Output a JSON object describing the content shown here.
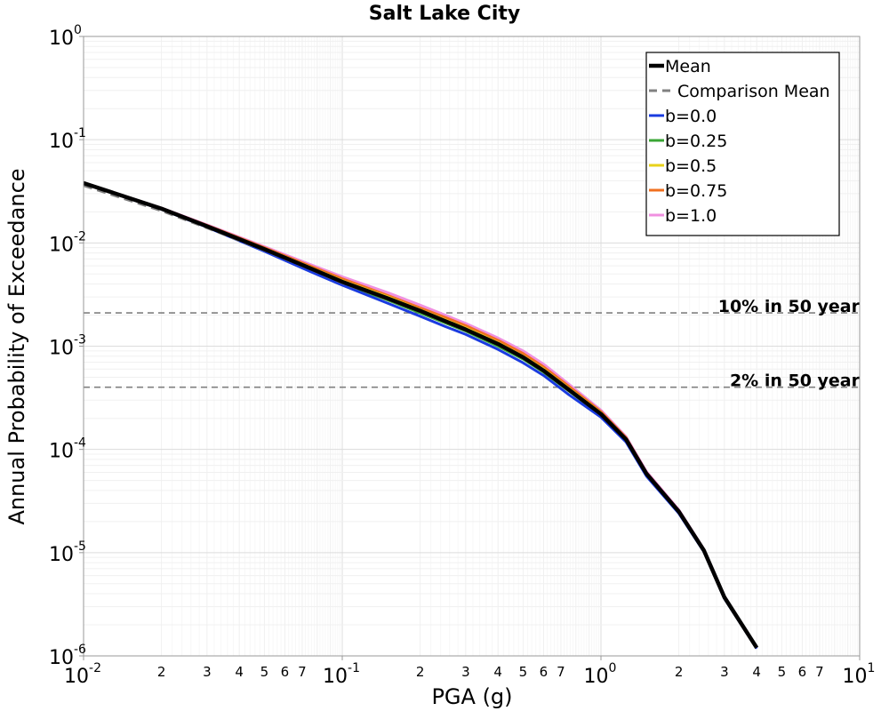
{
  "chart_data": {
    "type": "line",
    "title": "Salt Lake City",
    "xlabel": "PGA (g)",
    "ylabel": "Annual Probability of Exceedance",
    "x_scale": "log",
    "y_scale": "log",
    "xlim": [
      0.01,
      10
    ],
    "ylim": [
      1e-06,
      1
    ],
    "grid": true,
    "legend_position": "top-right",
    "x_major_ticks": [
      {
        "base": "10",
        "exp": "-2"
      },
      {
        "base": "10",
        "exp": "-1"
      },
      {
        "base": "10",
        "exp": "0"
      },
      {
        "base": "10",
        "exp": "1"
      }
    ],
    "y_major_ticks": [
      {
        "base": "10",
        "exp": "0"
      },
      {
        "base": "10",
        "exp": "-1"
      },
      {
        "base": "10",
        "exp": "-2"
      },
      {
        "base": "10",
        "exp": "-3"
      },
      {
        "base": "10",
        "exp": "-4"
      },
      {
        "base": "10",
        "exp": "-5"
      },
      {
        "base": "10",
        "exp": "-6"
      }
    ],
    "x_minor_tick_labels": [
      "2",
      "3",
      "4",
      "5",
      "6",
      "7"
    ],
    "x": [
      0.01,
      0.02,
      0.03,
      0.05,
      0.075,
      0.1,
      0.15,
      0.2,
      0.25,
      0.3,
      0.4,
      0.5,
      0.6,
      0.75,
      1.0,
      1.25,
      1.5,
      2.0,
      2.5,
      3.0,
      4.0
    ],
    "series": [
      {
        "name": "Mean",
        "color": "#000000",
        "style": "solid",
        "width": 4.5,
        "values": [
          0.038,
          0.0215,
          0.0145,
          0.0087,
          0.0057,
          0.0042,
          0.0029,
          0.0022,
          0.00175,
          0.00145,
          0.00105,
          0.00078,
          0.00058,
          0.00038,
          0.00022,
          0.000125,
          5.8e-05,
          2.5e-05,
          1.05e-05,
          3.7e-06,
          1.2e-06
        ]
      },
      {
        "name": "Comparison Mean",
        "color": "#808080",
        "style": "dashed",
        "width": 3,
        "values": [
          0.036,
          0.0205,
          0.014,
          0.0085,
          0.0056,
          0.0041,
          0.00285,
          0.00217,
          0.00172,
          0.00143,
          0.00104,
          0.00077,
          0.000575,
          0.000375,
          0.000218,
          0.000124,
          5.75e-05,
          2.48e-05,
          1.04e-05,
          3.7e-06,
          1.2e-06
        ]
      },
      {
        "name": "b=0.0",
        "color": "#1a3be0",
        "style": "solid",
        "width": 3,
        "values": [
          0.0378,
          0.0212,
          0.0142,
          0.0083,
          0.0053,
          0.0039,
          0.0026,
          0.00195,
          0.00155,
          0.0013,
          0.00093,
          0.00069,
          0.00052,
          0.00034,
          0.000205,
          0.000118,
          5.5e-05,
          2.4e-05,
          1.02e-05,
          3.6e-06,
          1.18e-06
        ]
      },
      {
        "name": "b=0.25",
        "color": "#3aa635",
        "style": "solid",
        "width": 3,
        "values": [
          0.038,
          0.0214,
          0.0144,
          0.0085,
          0.0055,
          0.00405,
          0.0028,
          0.0021,
          0.00168,
          0.0014,
          0.001,
          0.00075,
          0.00056,
          0.00037,
          0.000215,
          0.000122,
          5.65e-05,
          2.45e-05,
          1.04e-05,
          3.7e-06,
          1.2e-06
        ]
      },
      {
        "name": "b=0.5",
        "color": "#e8d21a",
        "style": "solid",
        "width": 3,
        "values": [
          0.0381,
          0.0216,
          0.0146,
          0.0088,
          0.0058,
          0.0043,
          0.003,
          0.00225,
          0.0018,
          0.0015,
          0.00108,
          0.0008,
          0.0006,
          0.00039,
          0.000225,
          0.000127,
          5.85e-05,
          2.52e-05,
          1.06e-05,
          3.7e-06,
          1.2e-06
        ]
      },
      {
        "name": "b=0.75",
        "color": "#f07020",
        "style": "solid",
        "width": 3,
        "values": [
          0.0382,
          0.0217,
          0.0148,
          0.009,
          0.006,
          0.0045,
          0.0031,
          0.00235,
          0.0019,
          0.00158,
          0.00114,
          0.00085,
          0.00063,
          0.00041,
          0.000232,
          0.00013,
          5.95e-05,
          2.55e-05,
          1.07e-05,
          3.7e-06,
          1.2e-06
        ]
      },
      {
        "name": "b=1.0",
        "color": "#f090e0",
        "style": "solid",
        "width": 3,
        "values": [
          0.0383,
          0.0218,
          0.015,
          0.0092,
          0.0062,
          0.0047,
          0.0033,
          0.0025,
          0.002,
          0.00166,
          0.0012,
          0.0009,
          0.00067,
          0.00043,
          0.00024,
          0.000133,
          6.1e-05,
          2.6e-05,
          1.08e-05,
          3.8e-06,
          1.2e-06
        ]
      }
    ],
    "reference_lines": [
      {
        "label": "10% in 50 year",
        "y": 0.0021,
        "color": "#808080",
        "style": "dashed"
      },
      {
        "label": "2% in 50 year",
        "y": 0.0004,
        "color": "#808080",
        "style": "dashed"
      }
    ]
  }
}
